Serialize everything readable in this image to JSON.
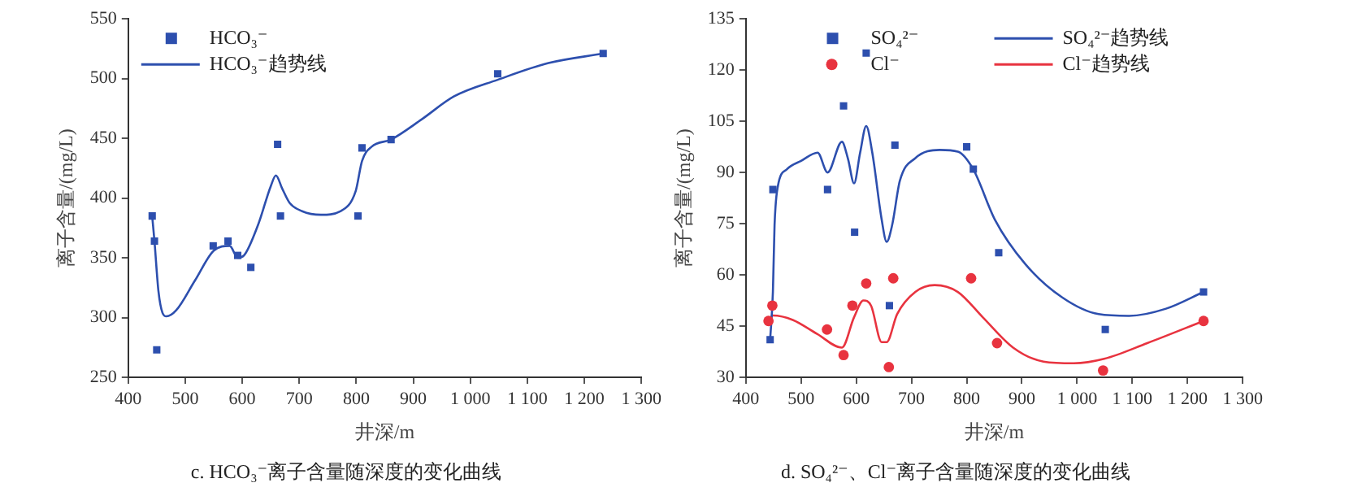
{
  "chart_data": [
    {
      "type": "scatter",
      "title": "c. HCO₃⁻离子含量随深度的变化曲线",
      "xlabel": "井深/m",
      "ylabel": "离子含量/(mg/L)",
      "xlim": [
        400,
        1300
      ],
      "xticks": [
        400,
        500,
        600,
        700,
        800,
        900,
        {
          "value": 1000,
          "label": "1 000"
        },
        {
          "value": 1100,
          "label": "1 100"
        },
        {
          "value": 1200,
          "label": "1 200"
        },
        {
          "value": 1300,
          "label": "1 300"
        }
      ],
      "ylim": [
        250,
        550
      ],
      "yticks": [
        250,
        300,
        350,
        400,
        450,
        500,
        550
      ],
      "grid": false,
      "legend": "top left",
      "series": [
        {
          "name": "HCO₃⁻",
          "type": "scatter",
          "marker": "square",
          "color": "#2d4fae",
          "x": [
            442,
            446,
            450,
            549,
            575,
            592,
            615,
            662,
            667,
            803,
            810,
            861,
            1048,
            1233
          ],
          "values": [
            385,
            364,
            273,
            360,
            364,
            352,
            342,
            445,
            385,
            385,
            442,
            449,
            504,
            521
          ]
        },
        {
          "name": "HCO₃⁻趋势线",
          "type": "line",
          "marker": "none",
          "color": "#2d4fae",
          "x": [
            442,
            446,
            453,
            460,
            467,
            484,
            517,
            550,
            578,
            592,
            603,
            628,
            650,
            659,
            670,
            683,
            705,
            738,
            772,
            799,
            810,
            827,
            861,
            915,
            971,
            1048,
            1137,
            1233
          ],
          "values": [
            385,
            364,
            322,
            304,
            301,
            306,
            331,
            356,
            360,
            350,
            352,
            378,
            410,
            419,
            408,
            396,
            389,
            386,
            389,
            406,
            431,
            443,
            449,
            466,
            485,
            499,
            513,
            521
          ]
        }
      ]
    },
    {
      "type": "scatter",
      "title": "d. SO₄²⁻、Cl⁻离子含量随深度的变化曲线",
      "xlabel": "井深/m",
      "ylabel": "离子含量/(mg/L)",
      "xlim": [
        400,
        1300
      ],
      "xticks": [
        400,
        500,
        600,
        700,
        800,
        900,
        {
          "value": 1000,
          "label": "1 000"
        },
        {
          "value": 1100,
          "label": "1 100"
        },
        {
          "value": 1200,
          "label": "1 200"
        },
        {
          "value": 1300,
          "label": "1 300"
        }
      ],
      "ylim": [
        30,
        135
      ],
      "yticks": [
        30,
        45,
        60,
        75,
        90,
        105,
        120,
        135
      ],
      "grid": false,
      "legend": "top",
      "series": [
        {
          "name": "SO₄²⁻",
          "type": "scatter",
          "marker": "square",
          "color": "#2d4fae",
          "x": [
            444,
            449,
            548,
            577,
            597,
            618,
            660,
            670,
            800,
            812,
            858,
            1051,
            1229
          ],
          "values": [
            41,
            85,
            85,
            109.5,
            72.5,
            125,
            51,
            98,
            97.5,
            91,
            66.5,
            44,
            55
          ]
        },
        {
          "name": "Cl⁻",
          "type": "scatter",
          "marker": "circle",
          "color": "#e8333f",
          "x": [
            441,
            448,
            547,
            577,
            593,
            618,
            659,
            667,
            808,
            855,
            1047,
            1229
          ],
          "values": [
            46.5,
            51,
            44,
            36.5,
            51,
            57.5,
            33,
            59,
            59,
            40,
            32,
            46.5
          ]
        },
        {
          "name": "SO₄²⁻趋势线",
          "type": "line",
          "marker": "none",
          "color": "#2d4fae",
          "x": [
            444,
            449,
            452,
            458,
            474,
            500,
            530,
            548,
            574,
            585,
            596,
            607,
            618,
            629,
            646,
            655,
            665,
            679,
            707,
            751,
            784,
            812,
            851,
            906,
            973,
            1039,
            1094,
            1161,
            1229
          ],
          "values": [
            41,
            55,
            74.6,
            86,
            90.9,
            93.4,
            95.8,
            90,
            99,
            94,
            86.8,
            95.8,
            103.6,
            95.8,
            76.2,
            69.7,
            74.6,
            87.6,
            94.2,
            96.6,
            96.1,
            90.9,
            76.2,
            63.2,
            53.4,
            48.5,
            48,
            50.1,
            55
          ]
        },
        {
          "name": "Cl⁻趋势线",
          "type": "line",
          "marker": "none",
          "color": "#e8333f",
          "x": [
            441,
            449,
            485,
            529,
            574,
            596,
            613,
            627,
            646,
            655,
            674,
            707,
            742,
            784,
            829,
            884,
            939,
            994,
            1049,
            1127,
            1229
          ],
          "values": [
            46.5,
            48.1,
            46.8,
            42.7,
            38.7,
            47.6,
            52.5,
            50.9,
            40.3,
            40.3,
            48.5,
            55,
            57,
            55,
            47.6,
            38.7,
            34.6,
            34.1,
            35.4,
            40,
            46.5
          ]
        }
      ]
    }
  ]
}
